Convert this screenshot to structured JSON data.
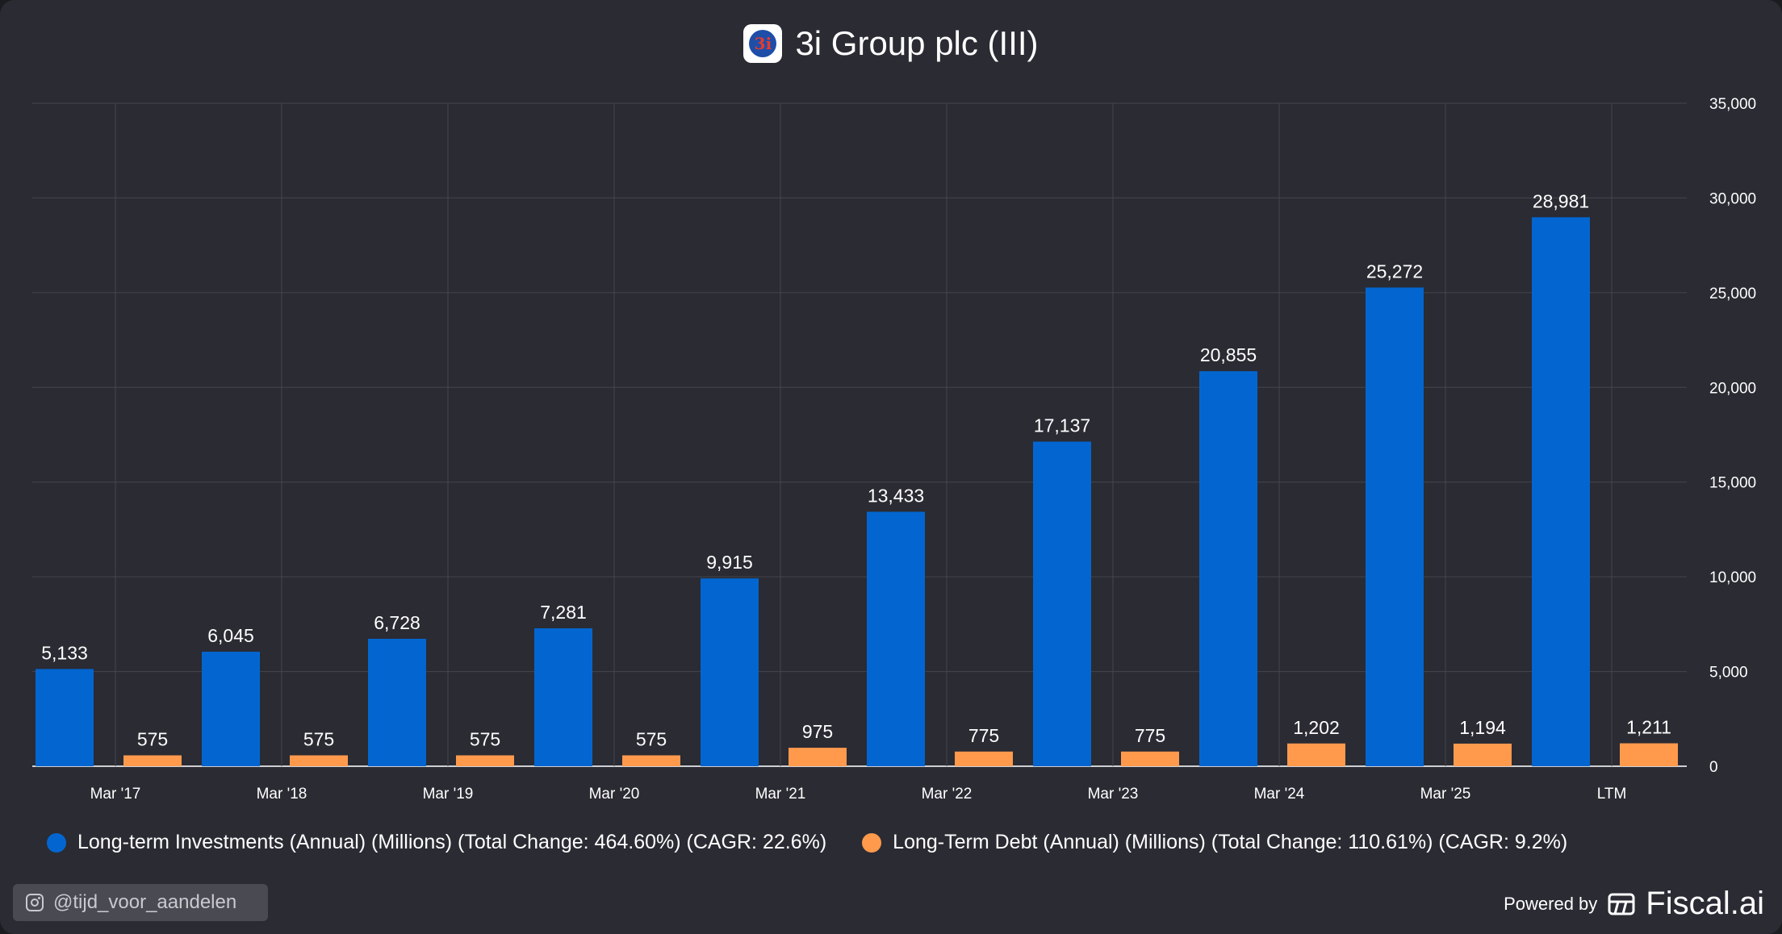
{
  "header": {
    "title": "3i Group plc (III)",
    "logo_text": "3i"
  },
  "chart_data": {
    "type": "bar",
    "categories": [
      "Mar '17",
      "Mar '18",
      "Mar '19",
      "Mar '20",
      "Mar '21",
      "Mar '22",
      "Mar '23",
      "Mar '24",
      "Mar '25",
      "LTM"
    ],
    "series": [
      {
        "name": "Long-term Investments (Annual) (Millions) (Total Change: 464.60%) (CAGR: 22.6%)",
        "color": "#0366d0",
        "values": [
          5133,
          6045,
          6728,
          7281,
          9915,
          13433,
          17137,
          20855,
          25272,
          28981
        ],
        "labels": [
          "5,133",
          "6,045",
          "6,728",
          "7,281",
          "9,915",
          "13,433",
          "17,137",
          "20,855",
          "25,272",
          "28,981"
        ]
      },
      {
        "name": "Long-Term Debt (Annual) (Millions) (Total Change: 110.61%) (CAGR: 9.2%)",
        "color": "#ff9a4d",
        "values": [
          575,
          575,
          575,
          575,
          975,
          775,
          775,
          1202,
          1194,
          1211
        ],
        "labels": [
          "575",
          "575",
          "575",
          "575",
          "975",
          "775",
          "775",
          "1,202",
          "1,194",
          "1,211"
        ]
      }
    ],
    "ylim": [
      0,
      35000
    ],
    "yticks": [
      0,
      5000,
      10000,
      15000,
      20000,
      25000,
      30000,
      35000
    ],
    "ytick_labels": [
      "0",
      "5,000",
      "10,000",
      "15,000",
      "20,000",
      "25,000",
      "30,000",
      "35,000"
    ],
    "y_axis_side": "right",
    "grid": true,
    "legend_position": "bottom"
  },
  "footer": {
    "handle": "@tijd_voor_aandelen",
    "powered_by": "Powered by",
    "brand": "Fiscal.ai"
  },
  "colors": {
    "background": "#2a2b33",
    "grid": "#45464e",
    "text": "#ffffff"
  }
}
